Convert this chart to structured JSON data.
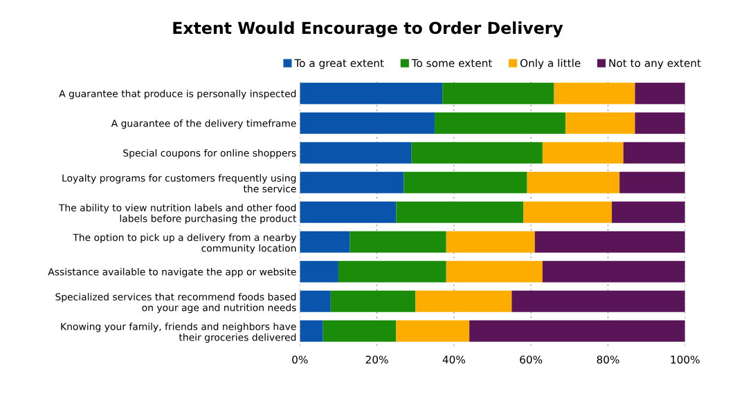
{
  "chart_data": {
    "type": "bar",
    "orientation": "horizontal",
    "stacked": true,
    "title": "Extent Would Encourage to Order Delivery",
    "categories": [
      "A guarantee that produce is personally inspected",
      "A guarantee of the delivery timeframe",
      "Special coupons for online shoppers",
      "Loyalty programs for customers frequently using\nthe service",
      "The ability to view nutrition labels and other food\nlabels before purchasing the product",
      "The option to pick up a delivery from a nearby\ncommunity location",
      "Assistance available to navigate the app or website",
      "Specialized services that recommend foods based\non your age and nutrition needs",
      "Knowing your family, friends and neighbors have\ntheir groceries delivered"
    ],
    "series": [
      {
        "name": "To a great extent",
        "color": "#0a55ab",
        "values": [
          37,
          35,
          29,
          27,
          25,
          13,
          10,
          8,
          6
        ]
      },
      {
        "name": "To some extent",
        "color": "#1a8c0a",
        "values": [
          29,
          34,
          34,
          32,
          33,
          25,
          28,
          22,
          19
        ]
      },
      {
        "name": "Only a little",
        "color": "#fdad00",
        "values": [
          21,
          18,
          21,
          24,
          23,
          23,
          25,
          25,
          19
        ]
      },
      {
        "name": "Not to any extent",
        "color": "#5a1558",
        "values": [
          13,
          13,
          16,
          17,
          19,
          39,
          37,
          45,
          56
        ]
      }
    ],
    "xlim": [
      0,
      100
    ],
    "xticks": [
      {
        "value": 0,
        "label": "0%"
      },
      {
        "value": 20,
        "label": "20%"
      },
      {
        "value": 40,
        "label": "40%"
      },
      {
        "value": 60,
        "label": "60%"
      },
      {
        "value": 80,
        "label": "80%"
      },
      {
        "value": 100,
        "label": "100%"
      }
    ],
    "grid": "x",
    "legend": "top"
  }
}
